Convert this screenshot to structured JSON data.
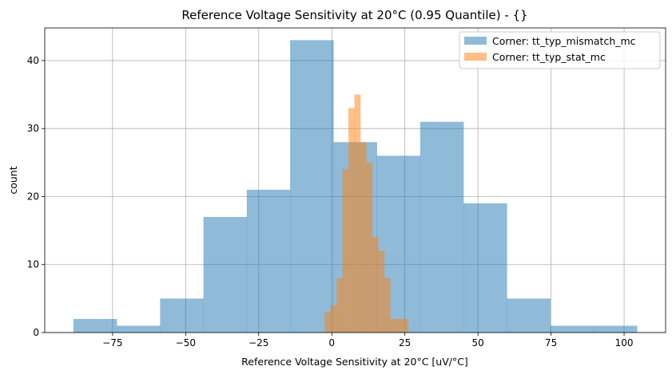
{
  "chart_data": {
    "type": "histogram",
    "title": "Reference Voltage Sensitivity at 20°C (0.95 Quantile) - {}",
    "xlabel": "Reference Voltage Sensitivity at 20°C [uV/°C]",
    "ylabel": "count",
    "xlim": [
      -98.2,
      114.2
    ],
    "ylim": [
      0,
      44.8
    ],
    "xticks": [
      -75,
      -50,
      -25,
      0,
      25,
      50,
      75,
      100
    ],
    "xtick_labels": [
      "−75",
      "−50",
      "−25",
      "0",
      "25",
      "50",
      "75",
      "100"
    ],
    "yticks": [
      0,
      10,
      20,
      30,
      40
    ],
    "grid": true,
    "legend_position": "top-right",
    "series": [
      {
        "name": "Corner: tt_typ_mismatch_mc",
        "color": "#1f77b4",
        "alpha": 0.5,
        "bin_start": -88.4,
        "bin_end": 104.4,
        "counts": [
          2,
          1,
          5,
          17,
          21,
          43,
          28,
          26,
          31,
          19,
          5,
          1,
          1
        ]
      },
      {
        "name": "Corner: tt_typ_stat_mc",
        "color": "#ff7f0e",
        "alpha": 0.5,
        "bin_start": -2.46,
        "bin_end": 26.1,
        "counts": [
          3,
          4,
          8,
          24,
          33,
          35,
          28,
          25,
          14,
          12,
          8,
          2,
          2,
          2
        ]
      }
    ]
  }
}
